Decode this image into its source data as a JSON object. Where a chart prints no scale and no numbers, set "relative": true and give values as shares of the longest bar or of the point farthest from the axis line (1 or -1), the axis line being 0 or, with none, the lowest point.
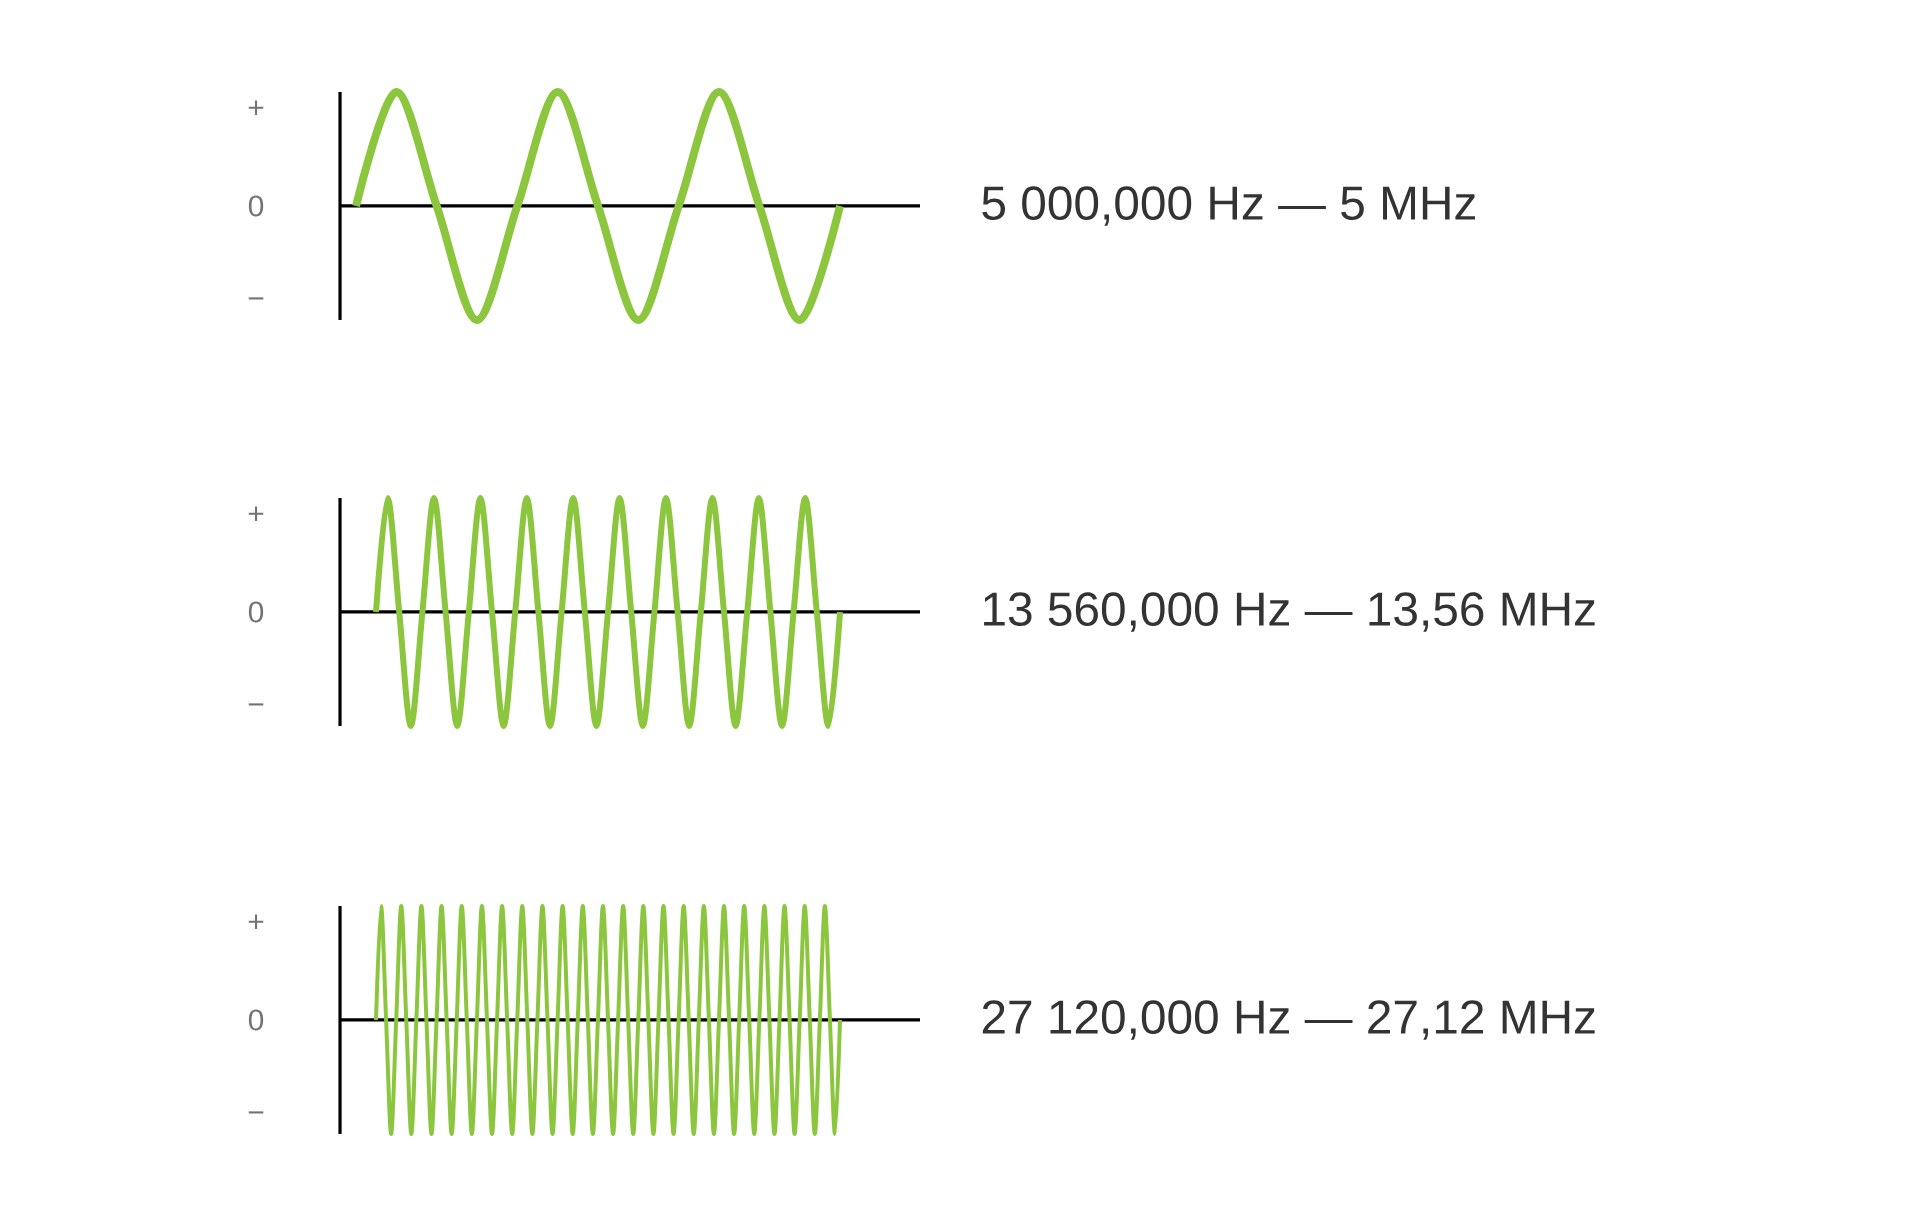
{
  "chart_data": [
    {
      "type": "line",
      "color": "#8cc63f",
      "relative": true,
      "annotations": [
        "+",
        "0",
        "−",
        "5 000,000 Hz — 5 MHz"
      ],
      "categories": [
        null,
        null,
        null,
        null,
        null,
        null,
        null,
        null,
        null,
        null,
        null,
        null,
        null
      ],
      "values": [
        0,
        1,
        0,
        -1,
        0,
        1,
        0,
        -1,
        0,
        1,
        0,
        -1,
        0
      ]
    },
    {
      "type": "line",
      "color": "#8cc63f",
      "relative": true,
      "annotations": [
        "+",
        "0",
        "−",
        "13 560,000 Hz — 13,56 MHz"
      ],
      "categories": [
        null,
        null,
        null,
        null,
        null,
        null,
        null,
        null,
        null,
        null,
        null,
        null,
        null,
        null,
        null,
        null,
        null,
        null,
        null,
        null,
        null,
        null,
        null,
        null,
        null,
        null,
        null,
        null,
        null,
        null,
        null,
        null,
        null,
        null,
        null,
        null,
        null,
        null,
        null,
        null,
        null
      ],
      "values": [
        0,
        1,
        0,
        -1,
        0,
        1,
        0,
        -1,
        0,
        1,
        0,
        -1,
        0,
        1,
        0,
        -1,
        0,
        1,
        0,
        -1,
        0,
        1,
        0,
        -1,
        0,
        1,
        0,
        -1,
        0,
        1,
        0,
        -1,
        0,
        1,
        0,
        -1,
        0,
        1,
        0,
        -1,
        0
      ]
    },
    {
      "type": "line",
      "color": "#8cc63f",
      "relative": true,
      "annotations": [
        "+",
        "0",
        "−",
        "27 120,000 Hz — 27,12 MHz"
      ],
      "categories": [
        null,
        null,
        null,
        null,
        null,
        null,
        null,
        null,
        null,
        null,
        null,
        null,
        null,
        null,
        null,
        null,
        null,
        null,
        null,
        null,
        null,
        null,
        null,
        null,
        null,
        null,
        null,
        null,
        null,
        null,
        null,
        null,
        null,
        null,
        null,
        null,
        null,
        null,
        null,
        null,
        null,
        null,
        null,
        null,
        null,
        null,
        null,
        null,
        null,
        null,
        null,
        null,
        null,
        null,
        null,
        null,
        null,
        null,
        null,
        null,
        null,
        null,
        null,
        null,
        null,
        null,
        null,
        null,
        null,
        null,
        null,
        null,
        null,
        null,
        null,
        null,
        null,
        null,
        null,
        null,
        null,
        null,
        null,
        null,
        null,
        null,
        null,
        null,
        null,
        null,
        null,
        null,
        null
      ],
      "values": [
        0,
        1,
        0,
        -1,
        0,
        1,
        0,
        -1,
        0,
        1,
        0,
        -1,
        0,
        1,
        0,
        -1,
        0,
        1,
        0,
        -1,
        0,
        1,
        0,
        -1,
        0,
        1,
        0,
        -1,
        0,
        1,
        0,
        -1,
        0,
        1,
        0,
        -1,
        0,
        1,
        0,
        -1,
        0,
        1,
        0,
        -1,
        0,
        1,
        0,
        -1,
        0,
        1,
        0,
        -1,
        0,
        1,
        0,
        -1,
        0,
        1,
        0,
        -1,
        0,
        1,
        0,
        -1,
        0,
        1,
        0,
        -1,
        0,
        1,
        0,
        -1,
        0,
        1,
        0,
        -1,
        0,
        1,
        0,
        -1,
        0,
        1,
        0,
        -1,
        0,
        1,
        0,
        -1,
        0,
        1,
        0,
        -1,
        0
      ]
    }
  ]
}
